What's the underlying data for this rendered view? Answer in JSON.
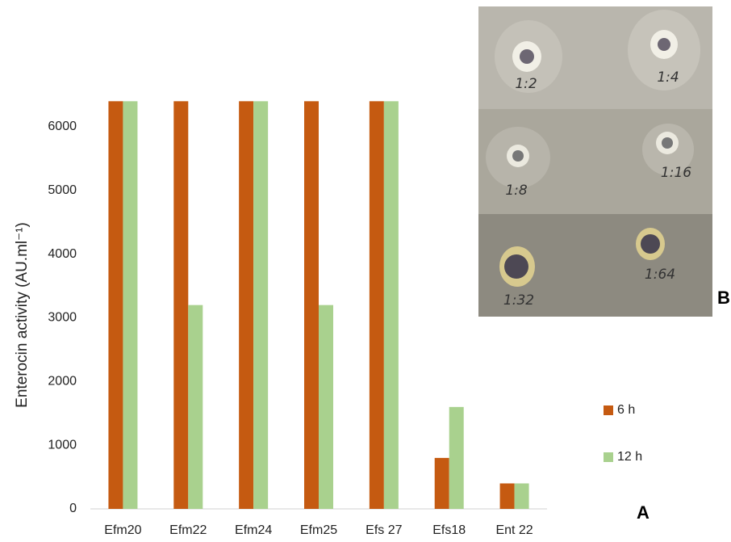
{
  "chart_data": {
    "type": "bar",
    "y_label": "Enterocin activity (AU.ml⁻¹)",
    "categories": [
      "Efm20",
      "Efm22",
      "Efm24",
      "Efm25",
      "Efs 27",
      "Efs18",
      "Ent 22"
    ],
    "series": [
      {
        "name": "6 h",
        "color": "#c55a11",
        "values": [
          6400,
          6400,
          6400,
          6400,
          6400,
          800,
          400
        ]
      },
      {
        "name": "12 h",
        "color": "#a9d18e",
        "values": [
          6400,
          3200,
          6400,
          3200,
          6400,
          1600,
          400
        ]
      }
    ],
    "ylim": [
      0,
      7000
    ],
    "yticks": [
      0,
      1000,
      2000,
      3000,
      4000,
      5000,
      6000
    ],
    "grid": false,
    "legend": "right",
    "annotations": [
      "A",
      "B"
    ]
  },
  "photo_labels": [
    "1:2",
    "1:4",
    "1:8",
    "1:16",
    "1:32",
    "1:64"
  ]
}
